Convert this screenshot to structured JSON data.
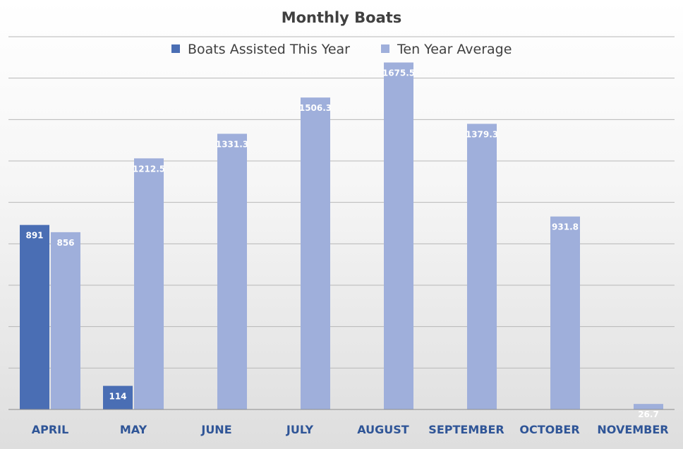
{
  "chart_data": {
    "type": "bar",
    "title": "Monthly Boats",
    "xlabel": "",
    "ylabel": "",
    "categories": [
      "APRIL",
      "MAY",
      "JUNE",
      "JULY",
      "AUGUST",
      "SEPTEMBER",
      "OCTOBER",
      "NOVEMBER"
    ],
    "series": [
      {
        "name": "Boats Assisted This Year",
        "color": "#4a6eb4",
        "values": [
          891,
          114,
          null,
          null,
          null,
          null,
          null,
          null
        ],
        "labels": [
          "891",
          "114",
          "",
          "",
          "",
          "",
          "",
          ""
        ]
      },
      {
        "name": "Ten Year Average",
        "color": "#9fafdb",
        "values": [
          856,
          1212.5,
          1331.3,
          1506.3,
          1675.5,
          1379.3,
          931.8,
          26.7
        ],
        "labels": [
          "856",
          "1212.5",
          "1331.3",
          "1506.3",
          "1675.5",
          "1379.3",
          "931.8",
          "26.7"
        ]
      }
    ],
    "ylim": [
      0,
      1800
    ],
    "grid": true,
    "legend_position": "top"
  }
}
